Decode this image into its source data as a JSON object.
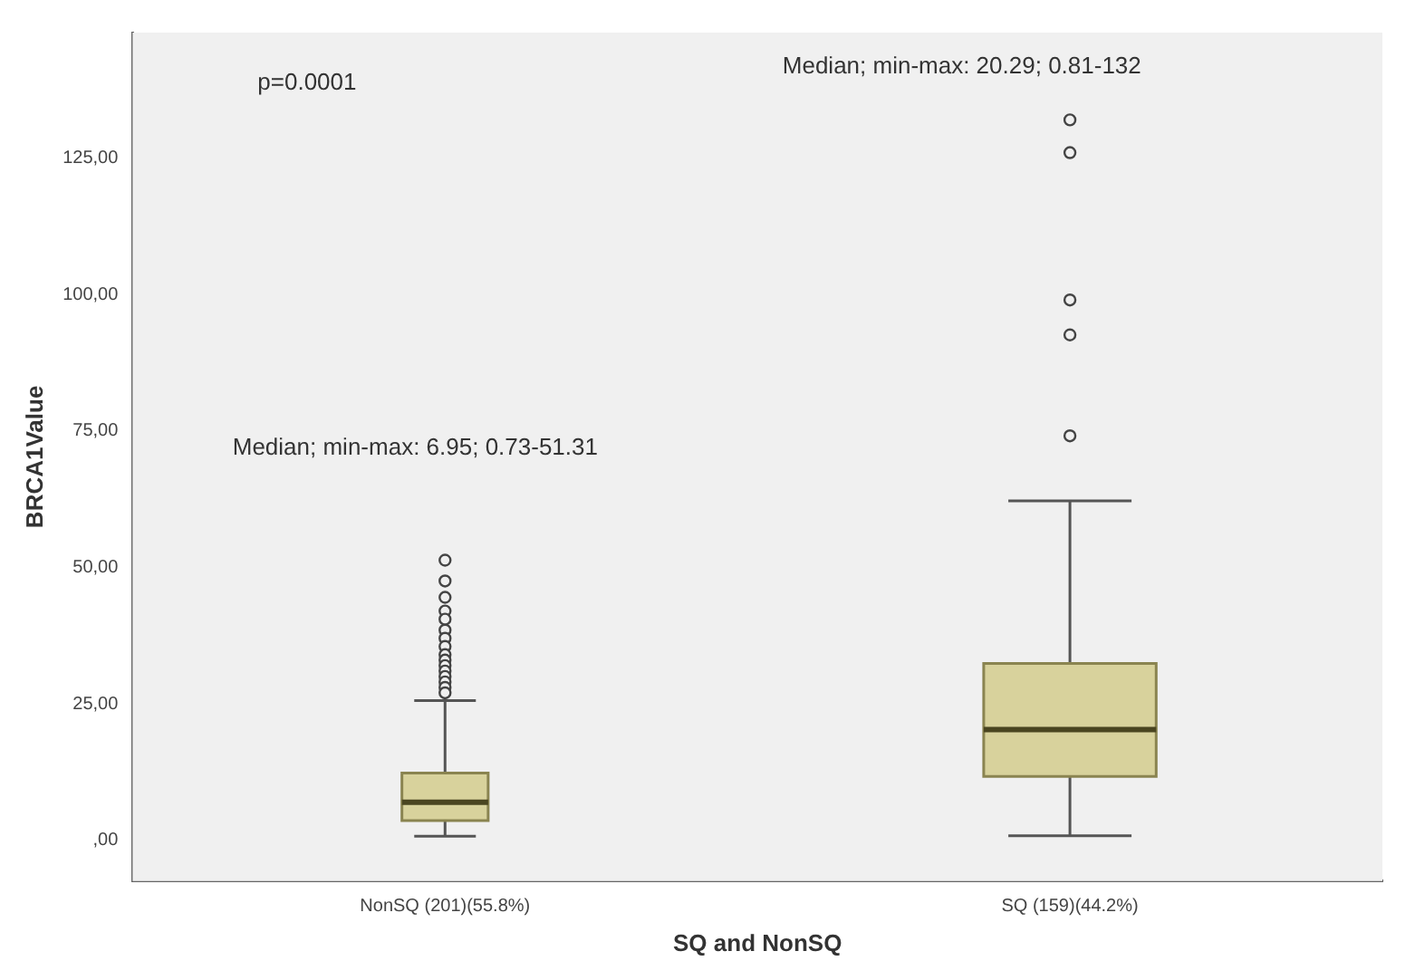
{
  "chart_data": {
    "type": "box",
    "xlabel": "SQ and NonSQ",
    "ylabel": "BRCA1Value",
    "categories": [
      "NonSQ (201)(55.8%)",
      "SQ (159)(44.2%)"
    ],
    "boxes": [
      {
        "low": 0.73,
        "q1": 3.6,
        "median": 6.95,
        "q3": 12.3,
        "high": 25.6,
        "outliers": [
          51.31,
          47.5,
          44.5,
          42,
          40.5,
          38.5,
          37,
          35.5,
          34,
          33,
          32,
          31,
          30,
          29,
          28,
          27
        ]
      },
      {
        "low": 0.81,
        "q1": 11.7,
        "median": 20.29,
        "q3": 32.4,
        "high": 62.2,
        "outliers": [
          132,
          126,
          99,
          92.6,
          74.1
        ]
      }
    ],
    "color": "#d8d29c",
    "ylim": [
      -7.5,
      148
    ],
    "yticks": [
      {
        "value": 0,
        "label": ",00"
      },
      {
        "value": 25,
        "label": "25,00"
      },
      {
        "value": 50,
        "label": "50,00"
      },
      {
        "value": 75,
        "label": "75,00"
      },
      {
        "value": 100,
        "label": "100,00"
      },
      {
        "value": 125,
        "label": "125,00"
      }
    ],
    "marker": "circle",
    "annotations": [
      "p=0.0001",
      "Median; min-max: 6.95; 0.73-51.31",
      "Median; min-max: 20.29; 0.81-132"
    ]
  }
}
